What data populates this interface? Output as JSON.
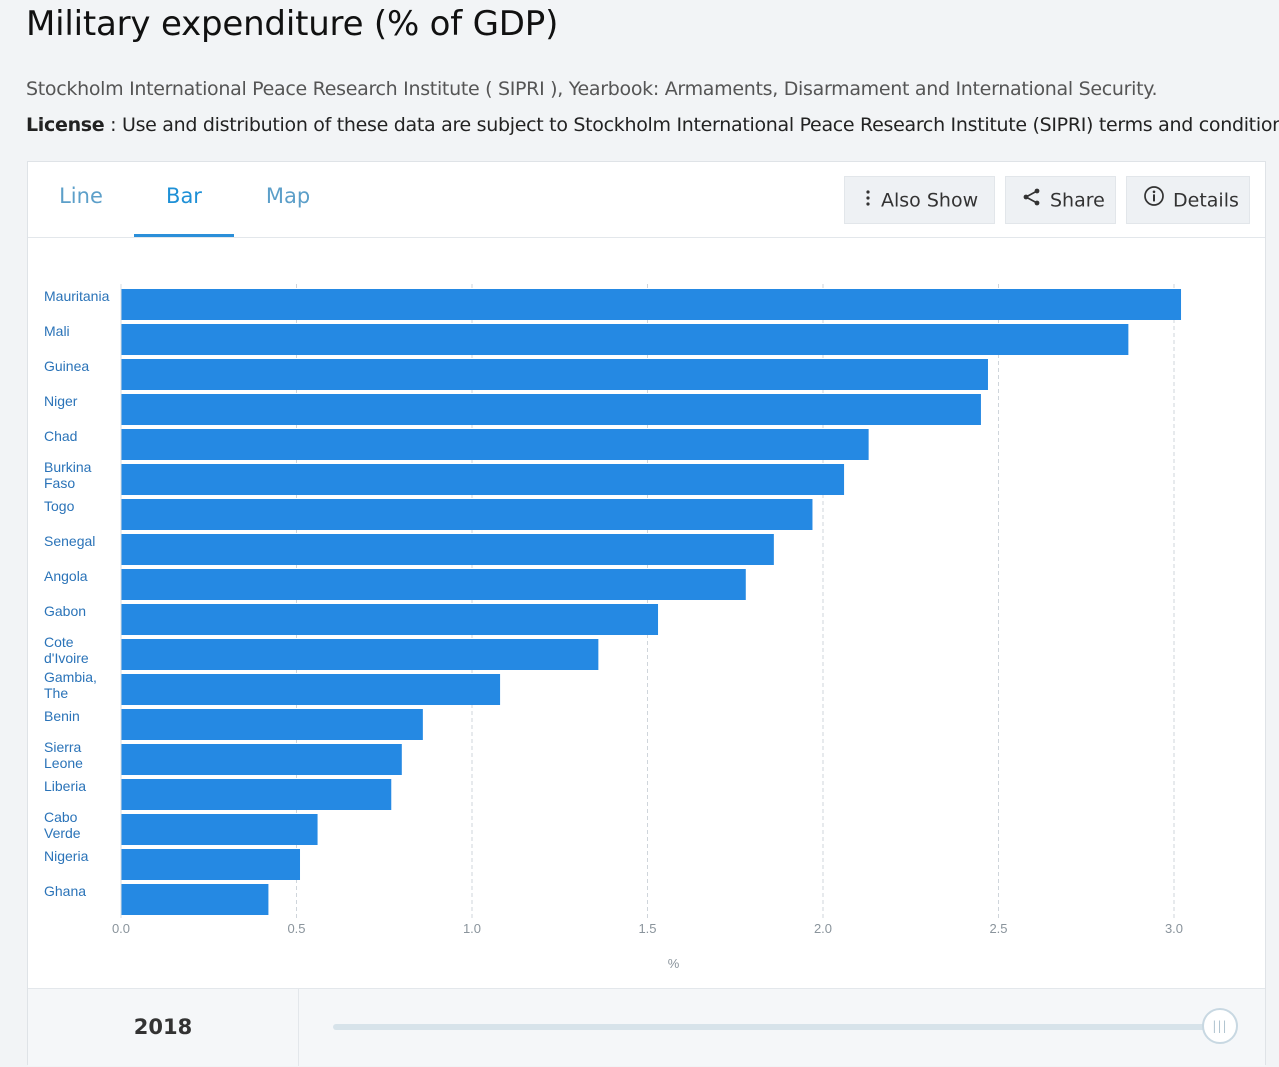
{
  "header": {
    "title": "Military expenditure (% of GDP)",
    "source": "Stockholm International Peace Research Institute ( SIPRI ), Yearbook: Armaments, Disarmament and International Security.",
    "license_label": "License",
    "license_text": " : Use and distribution of these data are subject to Stockholm International Peace Research Institute (SIPRI) terms and conditions."
  },
  "tabs": [
    {
      "label": "Line"
    },
    {
      "label": "Bar"
    },
    {
      "label": "Map"
    }
  ],
  "active_tab": "Bar",
  "actions": {
    "also_show": "Also Show",
    "share": "Share",
    "details": "Details"
  },
  "footer": {
    "year": "2018",
    "slider_position": 1.0
  },
  "colors": {
    "bar": "#2589e3",
    "accent": "#2b8fd9"
  },
  "chart_data": {
    "type": "bar",
    "orientation": "horizontal",
    "categories": [
      "Mauritania",
      "Mali",
      "Guinea",
      "Niger",
      "Chad",
      "Burkina Faso",
      "Togo",
      "Senegal",
      "Angola",
      "Gabon",
      "Cote d'Ivoire",
      "Gambia, The",
      "Benin",
      "Sierra Leone",
      "Liberia",
      "Cabo Verde",
      "Nigeria",
      "Ghana"
    ],
    "values": [
      3.02,
      2.87,
      2.47,
      2.45,
      2.13,
      2.06,
      1.97,
      1.86,
      1.78,
      1.53,
      1.36,
      1.08,
      0.86,
      0.8,
      0.77,
      0.56,
      0.51,
      0.42
    ],
    "xlabel": "%",
    "ylabel": "",
    "xlim": [
      0,
      3.0
    ],
    "xticks": [
      "0.0",
      "0.5",
      "1.0",
      "1.5",
      "2.0",
      "2.5",
      "3.0"
    ],
    "grid": "vertical dashed"
  }
}
